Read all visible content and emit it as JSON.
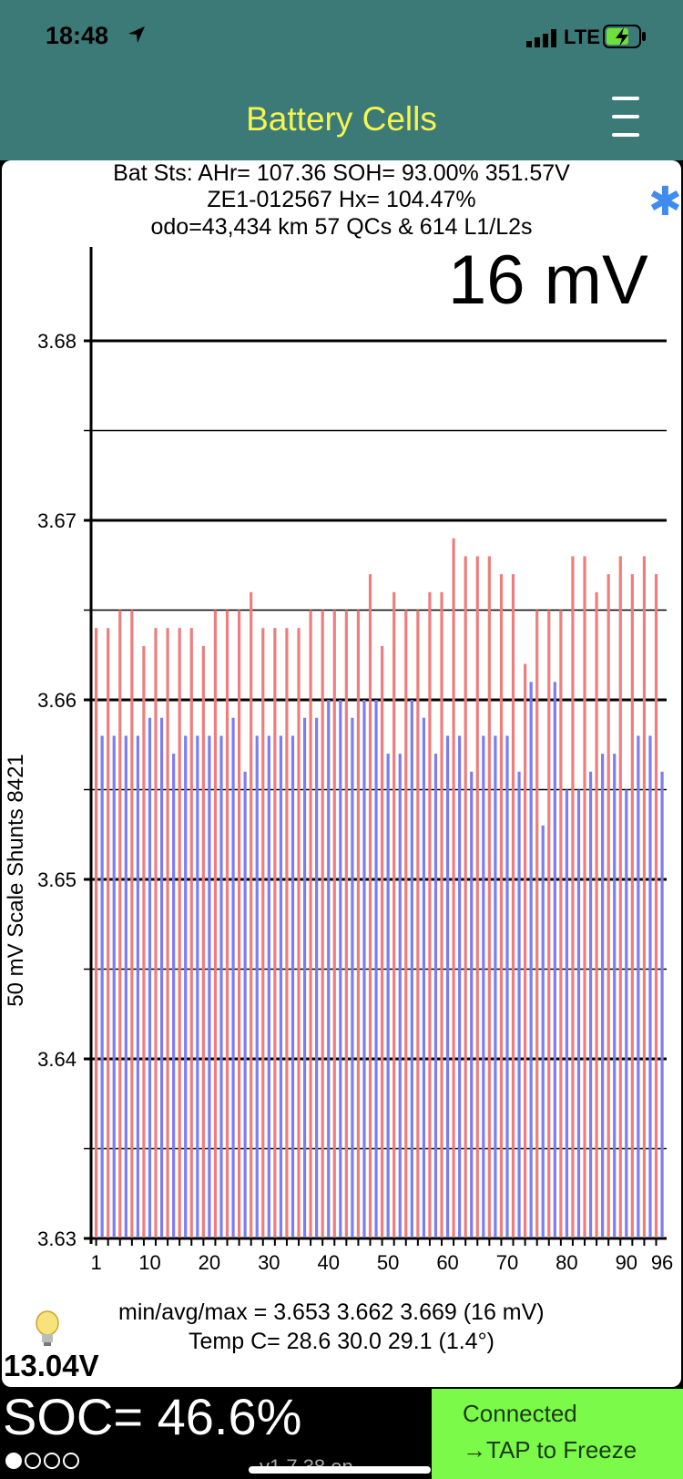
{
  "status_bar": {
    "time": "18:48",
    "network": "LTE",
    "signal_icon": "signal-bars-icon",
    "battery_icon": "battery-charging-icon",
    "location_icon": "location-arrow-icon"
  },
  "nav": {
    "title": "Battery Cells",
    "menu_icon": "hamburger-menu-icon"
  },
  "header": {
    "line1": "Bat Sts: AHr= 107.36 SOH= 93.00% 351.57V",
    "line2": "ZE1-012567   Hx= 104.47%",
    "line3": "odo=43,434 km 57 QCs & 614 L1/L2s",
    "spread": "16 mV",
    "star_icon": "asterisk-icon"
  },
  "stats": {
    "minmax": "min/avg/max = 3.653  3.662  3.669  (16 mV)",
    "temp": "Temp C= 28.6  30.0  29.1  (1.4°)"
  },
  "voltage": "13.04V",
  "bulb_icon": "lightbulb-icon",
  "bottom": {
    "soc": "SOC= 46.6%",
    "version": "v1.7.38 en",
    "connected": "Connected",
    "tap": "→TAP to Freeze",
    "dots_filled": 1,
    "dots_total": 4
  },
  "chart_data": {
    "type": "bar",
    "ylabel": "50 mV Scale   Shunts 8421",
    "ylim": [
      3.63,
      3.6849
    ],
    "yticks": [
      3.63,
      3.64,
      3.65,
      3.66,
      3.67,
      3.68
    ],
    "ytick_labels": [
      "3.63",
      "3.64",
      "3.65",
      "3.66",
      "3.67",
      "3.68"
    ],
    "xtick_labels": [
      "1",
      "10",
      "20",
      "30",
      "40",
      "50",
      "60",
      "70",
      "80",
      "90",
      "96"
    ],
    "xticks": [
      1,
      10,
      20,
      30,
      40,
      50,
      60,
      70,
      80,
      90,
      96
    ],
    "colors": {
      "odd": "#ef7d7d",
      "even": "#7b7df0"
    },
    "values": [
      3.664,
      3.658,
      3.664,
      3.658,
      3.665,
      3.658,
      3.665,
      3.658,
      3.663,
      3.659,
      3.664,
      3.659,
      3.664,
      3.657,
      3.664,
      3.658,
      3.664,
      3.658,
      3.663,
      3.658,
      3.665,
      3.658,
      3.665,
      3.659,
      3.665,
      3.656,
      3.666,
      3.658,
      3.664,
      3.658,
      3.664,
      3.658,
      3.664,
      3.658,
      3.664,
      3.659,
      3.665,
      3.659,
      3.665,
      3.66,
      3.665,
      3.66,
      3.665,
      3.659,
      3.665,
      3.66,
      3.667,
      3.66,
      3.663,
      3.657,
      3.666,
      3.657,
      3.665,
      3.66,
      3.665,
      3.659,
      3.666,
      3.657,
      3.666,
      3.658,
      3.669,
      3.658,
      3.668,
      3.656,
      3.668,
      3.658,
      3.668,
      3.658,
      3.667,
      3.658,
      3.667,
      3.656,
      3.662,
      3.661,
      3.665,
      3.653,
      3.665,
      3.661,
      3.665,
      3.655,
      3.668,
      3.655,
      3.668,
      3.656,
      3.666,
      3.657,
      3.667,
      3.657,
      3.668,
      3.655,
      3.667,
      3.658,
      3.668,
      3.658,
      3.667,
      3.656
    ]
  }
}
